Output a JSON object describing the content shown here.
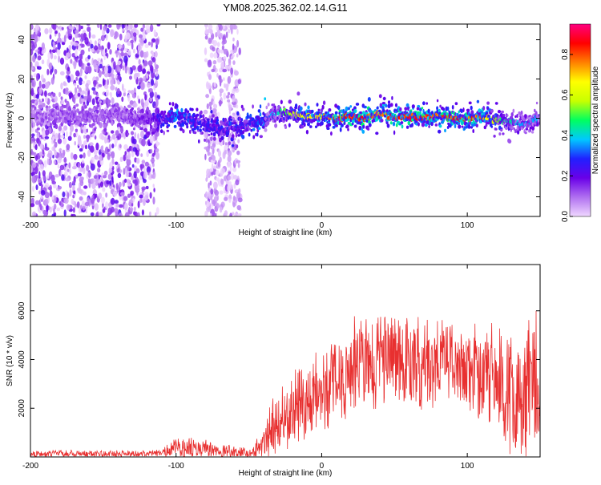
{
  "title": "YM08.2025.362.02.14.G11",
  "chart_data": [
    {
      "type": "heatmap",
      "xlabel": "Height of straight line (km)",
      "ylabel": "Frequency (Hz)",
      "xlim": [
        -200,
        150
      ],
      "ylim": [
        -50,
        48
      ],
      "xticks": [
        "-200",
        "-100",
        "0",
        "100"
      ],
      "xtick_values": [
        -200,
        -100,
        0,
        100
      ],
      "yticks": [
        "-40",
        "-20",
        "0",
        "20",
        "40"
      ],
      "ytick_values": [
        -40,
        -20,
        0,
        20,
        40
      ],
      "colorbar": {
        "label": "Normalized spectral amplitude",
        "range": [
          0,
          0.95
        ],
        "ticks": [
          "0.0",
          "0.2",
          "0.4",
          "0.6",
          "0.8"
        ],
        "tick_values": [
          0.0,
          0.2,
          0.4,
          0.6,
          0.8
        ],
        "colors": [
          "#f0d8ff",
          "#b070f0",
          "#6a00e8",
          "#2020ff",
          "#00c8ff",
          "#00ff60",
          "#c8ff00",
          "#ffff00",
          "#ff8000",
          "#ff0000",
          "#ff0080"
        ]
      },
      "noise_regions": [
        {
          "x_from": -200,
          "x_to": -112,
          "f_from": -50,
          "f_to": 48,
          "level": 0.18
        },
        {
          "x_from": -80,
          "x_to": -56,
          "f_from": -50,
          "f_to": 48,
          "level": 0.1
        }
      ],
      "ridge": {
        "x": [
          -200,
          -180,
          -160,
          -140,
          -120,
          -110,
          -100,
          -90,
          -80,
          -70,
          -60,
          -50,
          -40,
          -30,
          -20,
          -10,
          0,
          10,
          20,
          30,
          40,
          50,
          60,
          70,
          80,
          90,
          100,
          110,
          120,
          130,
          140,
          150
        ],
        "frequency": [
          1,
          2,
          1,
          1,
          0,
          -1,
          2,
          -1,
          -3,
          -6,
          -5,
          -3,
          -1,
          3,
          2,
          1,
          1,
          0,
          1,
          0,
          3,
          0,
          1,
          0,
          1,
          0,
          0,
          1,
          -1,
          -2,
          -3,
          1
        ],
        "amplitude": [
          0.1,
          0.12,
          0.12,
          0.12,
          0.15,
          0.22,
          0.3,
          0.25,
          0.22,
          0.22,
          0.25,
          0.25,
          0.28,
          0.45,
          0.6,
          0.7,
          0.75,
          0.85,
          0.9,
          0.9,
          0.8,
          0.9,
          0.9,
          0.9,
          0.85,
          0.9,
          0.88,
          0.8,
          0.6,
          0.45,
          0.35,
          0.4
        ]
      }
    },
    {
      "type": "line",
      "xlabel": "Height of straight line (km)",
      "ylabel": "SNR (10 * v/v)",
      "xlim": [
        -200,
        150
      ],
      "ylim": [
        0,
        7900
      ],
      "xticks": [
        "-200",
        "-100",
        "0",
        "100"
      ],
      "xtick_values": [
        -200,
        -100,
        0,
        100
      ],
      "yticks": [
        "2000",
        "4000",
        "6000"
      ],
      "ytick_values": [
        2000,
        4000,
        6000
      ],
      "color": "#e83030",
      "envelope": {
        "x": [
          -200,
          -150,
          -110,
          -100,
          -80,
          -60,
          -50,
          -40,
          -35,
          -30,
          -20,
          -10,
          0,
          10,
          20,
          30,
          40,
          50,
          60,
          70,
          80,
          90,
          100,
          110,
          120,
          130,
          140,
          150
        ],
        "mean": [
          120,
          130,
          150,
          350,
          300,
          200,
          150,
          500,
          900,
          1400,
          2000,
          2300,
          2700,
          3100,
          3600,
          3800,
          4000,
          4100,
          3900,
          3800,
          3900,
          3800,
          3700,
          3600,
          3100,
          2700,
          2700,
          3100
        ],
        "amp": [
          150,
          140,
          150,
          420,
          380,
          280,
          200,
          600,
          1100,
          1400,
          1600,
          1600,
          1700,
          1800,
          1900,
          2000,
          2000,
          2000,
          1900,
          1800,
          1800,
          1800,
          1800,
          1900,
          2200,
          2600,
          2700,
          2500
        ]
      }
    }
  ]
}
